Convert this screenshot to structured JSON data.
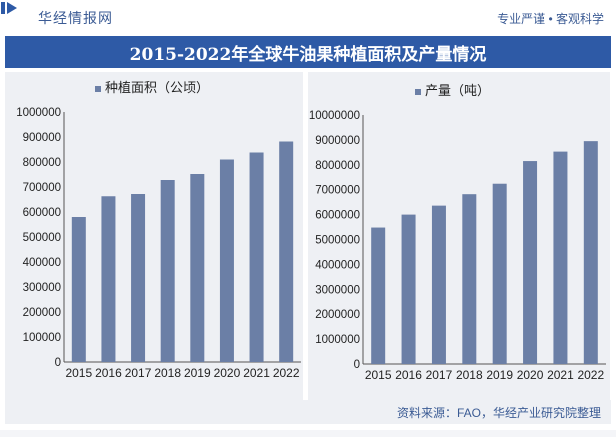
{
  "header": {
    "brand": "华经情报网",
    "slogan": "专业严谨 • 客观科学"
  },
  "title": "2015-2022年全球牛油果种植面积及产量情况",
  "source": "资料来源：FAO，华经产业研究院整理",
  "colors": {
    "bar": "#6b7fa6",
    "title_bg": "#2e5aa6",
    "panel_bg": "#eef0f4",
    "text_blue": "#3b5b94"
  },
  "chart_data": [
    {
      "type": "bar",
      "legend": "种植面积（公顷）",
      "categories": [
        "2015",
        "2016",
        "2017",
        "2018",
        "2019",
        "2020",
        "2021",
        "2022"
      ],
      "values": [
        580000,
        663000,
        672000,
        728000,
        752000,
        810000,
        838000,
        882000
      ],
      "ylim": [
        0,
        1000000
      ],
      "yticks": [
        "0",
        "100000",
        "200000",
        "300000",
        "400000",
        "500000",
        "600000",
        "700000",
        "800000",
        "900000",
        "1000000"
      ]
    },
    {
      "type": "bar",
      "legend": "产量（吨）",
      "categories": [
        "2015",
        "2016",
        "2017",
        "2018",
        "2019",
        "2020",
        "2021",
        "2022"
      ],
      "values": [
        5480000,
        6000000,
        6360000,
        6820000,
        7240000,
        8150000,
        8530000,
        8950000
      ],
      "ylim": [
        0,
        10000000
      ],
      "yticks": [
        "0",
        "1000000",
        "2000000",
        "3000000",
        "4000000",
        "5000000",
        "6000000",
        "7000000",
        "8000000",
        "9000000",
        "10000000"
      ]
    }
  ]
}
